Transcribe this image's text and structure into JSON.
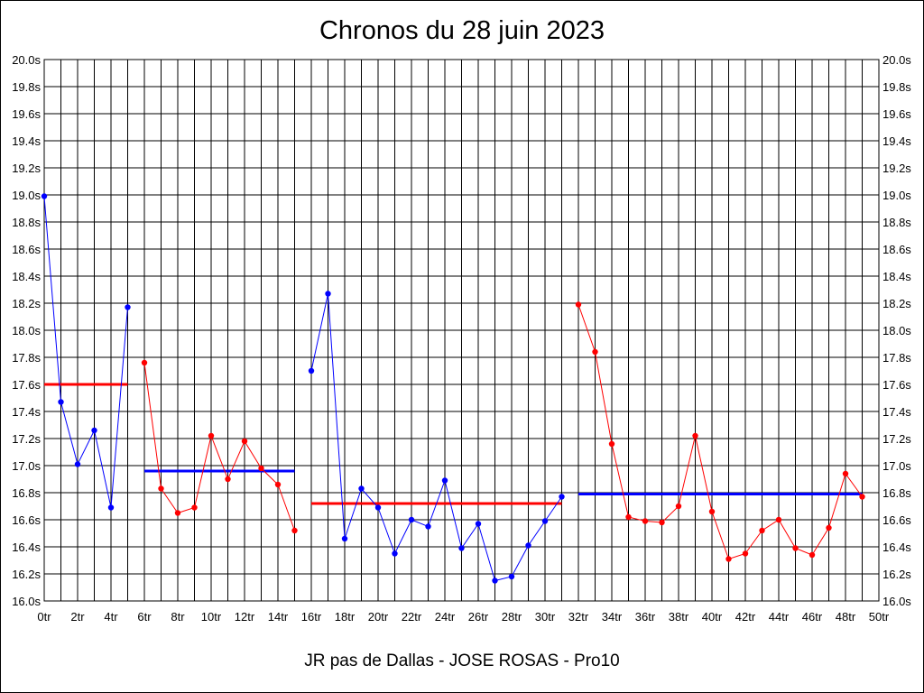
{
  "chart_data": {
    "type": "line",
    "title": "Chronos du 28 juin 2023",
    "subtitle": "JR pas de Dallas - JOSE ROSAS - Pro10",
    "xlim": [
      0,
      50
    ],
    "ylim": [
      16.0,
      20.0
    ],
    "x_ticks": [
      "0tr",
      "2tr",
      "4tr",
      "6tr",
      "8tr",
      "10tr",
      "12tr",
      "14tr",
      "16tr",
      "18tr",
      "20tr",
      "22tr",
      "24tr",
      "26tr",
      "28tr",
      "30tr",
      "32tr",
      "34tr",
      "36tr",
      "38tr",
      "40tr",
      "42tr",
      "44tr",
      "46tr",
      "48tr",
      "50tr"
    ],
    "y_ticks": [
      "16.0s",
      "16.2s",
      "16.4s",
      "16.6s",
      "16.8s",
      "17.0s",
      "17.2s",
      "17.4s",
      "17.6s",
      "17.8s",
      "18.0s",
      "18.2s",
      "18.4s",
      "18.6s",
      "18.8s",
      "19.0s",
      "19.2s",
      "19.4s",
      "19.6s",
      "19.8s",
      "20.0s"
    ],
    "grid": true,
    "series": [
      {
        "color": "#0000ff",
        "x": [
          0,
          1,
          2,
          3,
          4,
          5
        ],
        "y": [
          18.99,
          17.47,
          17.01,
          17.26,
          16.69,
          18.17
        ]
      },
      {
        "color": "#ff0000",
        "x": [
          6,
          7,
          8,
          9,
          10,
          11,
          12,
          13,
          14,
          15
        ],
        "y": [
          17.76,
          16.83,
          16.65,
          16.69,
          17.22,
          16.9,
          17.18,
          16.98,
          16.86,
          16.52
        ]
      },
      {
        "color": "#0000ff",
        "x": [
          16,
          17,
          18,
          19,
          20,
          21,
          22,
          23,
          24,
          25,
          26,
          27,
          28,
          29,
          30,
          31
        ],
        "y": [
          17.7,
          18.27,
          16.46,
          16.83,
          16.69,
          16.35,
          16.6,
          16.55,
          16.89,
          16.39,
          16.57,
          16.15,
          16.18,
          16.41,
          16.59,
          16.77
        ]
      },
      {
        "color": "#ff0000",
        "x": [
          32,
          33,
          34,
          35,
          36,
          37,
          38,
          39,
          40,
          41,
          42,
          43,
          44,
          45,
          46,
          47,
          48,
          49
        ],
        "y": [
          18.19,
          17.84,
          17.16,
          16.62,
          16.59,
          16.58,
          16.7,
          17.22,
          16.66,
          16.31,
          16.35,
          16.52,
          16.6,
          16.39,
          16.34,
          16.54,
          16.94,
          16.77
        ]
      }
    ],
    "average_lines": [
      {
        "color": "#ff0000",
        "x_start": 0,
        "x_end": 5,
        "y": 17.6
      },
      {
        "color": "#0000ff",
        "x_start": 6,
        "x_end": 15,
        "y": 16.96
      },
      {
        "color": "#ff0000",
        "x_start": 16,
        "x_end": 31,
        "y": 16.72
      },
      {
        "color": "#0000ff",
        "x_start": 32,
        "x_end": 49,
        "y": 16.79
      }
    ]
  }
}
